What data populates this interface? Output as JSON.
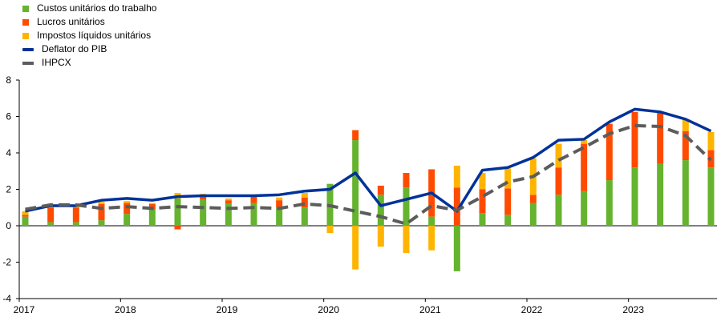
{
  "colors": {
    "labour": "#65b32e",
    "profits": "#ff4b00",
    "taxes": "#ffb400",
    "deflator": "#003299",
    "hicp": "#5c5c5c"
  },
  "legend": [
    {
      "key": "labour",
      "label": "Custos unitários do trabalho",
      "kind": "box"
    },
    {
      "key": "profits",
      "label": "Lucros unitários",
      "kind": "box"
    },
    {
      "key": "taxes",
      "label": "Impostos líquidos unitários",
      "kind": "box"
    },
    {
      "key": "deflator",
      "label": "Deflator do PIB",
      "kind": "line"
    },
    {
      "key": "hicp",
      "label": "IHPCX",
      "kind": "dash"
    }
  ],
  "chart_data": {
    "type": "bar",
    "stacked": true,
    "ylim": [
      -4,
      8
    ],
    "yticks": [
      -4,
      -2,
      0,
      2,
      4,
      6,
      8
    ],
    "xtick_labels": [
      "2017",
      "2018",
      "2019",
      "2020",
      "2021",
      "2022",
      "2023"
    ],
    "categories": [
      "2017Q1",
      "2017Q2",
      "2017Q3",
      "2017Q4",
      "2018Q1",
      "2018Q2",
      "2018Q3",
      "2018Q4",
      "2019Q1",
      "2019Q2",
      "2019Q3",
      "2019Q4",
      "2020Q1",
      "2020Q2",
      "2020Q3",
      "2020Q4",
      "2021Q1",
      "2021Q2",
      "2021Q3",
      "2021Q4",
      "2022Q1",
      "2022Q2",
      "2022Q3",
      "2022Q4",
      "2023Q1",
      "2023Q2",
      "2023Q3",
      "2023Q4"
    ],
    "series": [
      {
        "name": "Custos unitários do trabalho",
        "type": "bar",
        "values": [
          0.5,
          0.2,
          0.2,
          0.3,
          0.65,
          0.9,
          1.5,
          1.45,
          1.2,
          1.25,
          1.0,
          1.0,
          2.3,
          4.7,
          1.7,
          2.1,
          0.5,
          -2.5,
          0.7,
          0.6,
          1.25,
          1.7,
          1.9,
          2.5,
          3.2,
          3.4,
          3.6,
          3.2
        ]
      },
      {
        "name": "Lucros unitários",
        "type": "bar",
        "values": [
          0.1,
          0.8,
          0.8,
          0.9,
          0.6,
          0.3,
          -0.2,
          0.2,
          0.2,
          0.35,
          0.4,
          0.55,
          0.0,
          0.55,
          0.5,
          0.8,
          2.6,
          2.1,
          1.3,
          1.45,
          0.45,
          1.5,
          2.6,
          3.1,
          3.05,
          2.8,
          1.6,
          0.95
        ]
      },
      {
        "name": "Impostos líquidos unitários",
        "type": "bar",
        "values": [
          0.2,
          0.1,
          0.1,
          0.1,
          0.1,
          0.05,
          0.3,
          0.1,
          0.1,
          0.1,
          0.15,
          0.25,
          -0.4,
          -2.4,
          -1.15,
          -1.5,
          -1.35,
          1.2,
          0.9,
          1.1,
          2.0,
          1.3,
          0.2,
          0.0,
          0.0,
          0.0,
          0.6,
          1.0
        ]
      },
      {
        "name": "Deflator do PIB",
        "type": "line",
        "values": [
          0.8,
          1.1,
          1.1,
          1.4,
          1.5,
          1.4,
          1.6,
          1.65,
          1.65,
          1.65,
          1.7,
          1.9,
          2.0,
          2.9,
          1.1,
          1.45,
          1.8,
          0.8,
          3.05,
          3.2,
          3.75,
          4.7,
          4.75,
          5.7,
          6.4,
          6.25,
          5.85,
          5.2
        ]
      },
      {
        "name": "IHPCX",
        "type": "line",
        "dashed": true,
        "values": [
          0.9,
          1.15,
          1.15,
          0.95,
          1.05,
          0.95,
          1.05,
          1.0,
          0.95,
          1.0,
          0.95,
          1.2,
          1.1,
          0.8,
          0.5,
          0.1,
          1.1,
          0.85,
          1.6,
          2.4,
          2.7,
          3.6,
          4.3,
          5.05,
          5.5,
          5.45,
          4.95,
          3.6
        ]
      }
    ]
  }
}
